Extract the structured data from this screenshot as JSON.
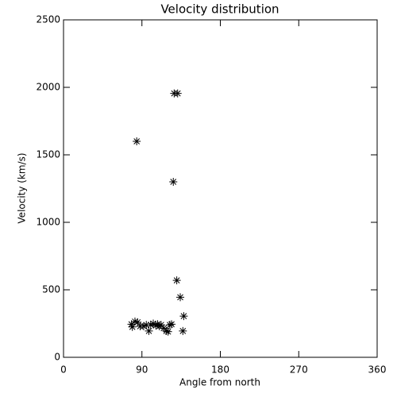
{
  "chart_data": {
    "type": "scatter",
    "title": "Velocity distribution",
    "x_label": "Angle from north",
    "y_label": "Velocity (km/s)",
    "x": [
      84,
      127,
      131,
      126,
      130,
      134,
      138,
      137,
      78,
      79,
      82,
      85,
      88,
      92,
      95,
      98,
      100,
      103,
      106,
      108,
      110,
      112,
      115,
      118,
      120,
      122,
      124
    ],
    "values": [
      1600,
      1955,
      1955,
      1300,
      570,
      445,
      305,
      195,
      245,
      225,
      265,
      260,
      230,
      230,
      240,
      195,
      240,
      250,
      235,
      245,
      230,
      240,
      215,
      195,
      190,
      240,
      245
    ],
    "color": "#000000",
    "xlim": [
      0,
      360
    ],
    "xticks": [
      0,
      90,
      180,
      270,
      360
    ],
    "ylim": [
      0,
      2500
    ],
    "yticks": [
      0,
      500,
      1000,
      1500,
      2000,
      2500
    ]
  }
}
